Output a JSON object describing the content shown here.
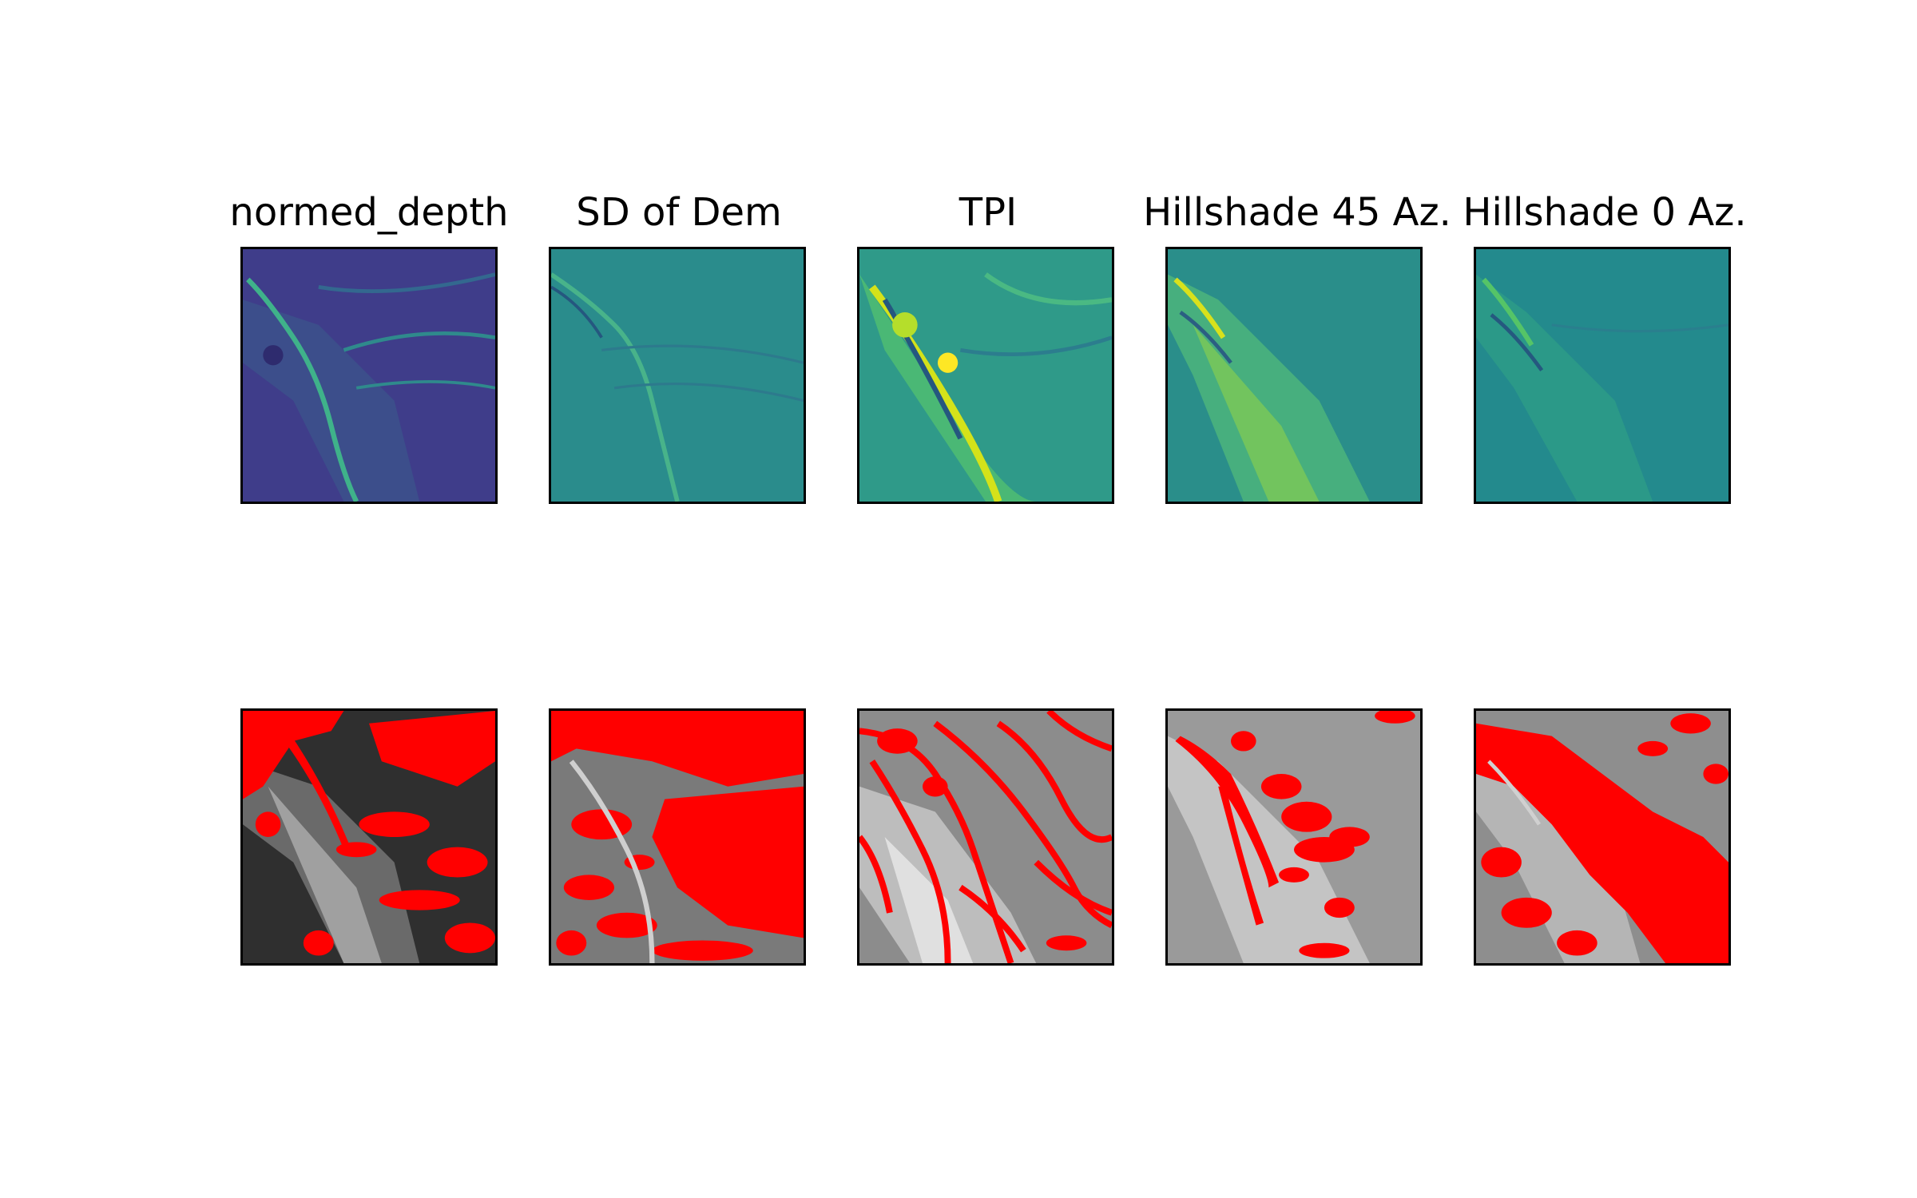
{
  "figure": {
    "titles": [
      "normed_depth",
      "SD of Dem",
      "TPI",
      "Hillshade 45 Az.",
      "Hillshade 0 Az."
    ],
    "top_row_colormap": "viridis",
    "bottom_row_colormap": "gray",
    "overlay_color": "#ff0000"
  }
}
